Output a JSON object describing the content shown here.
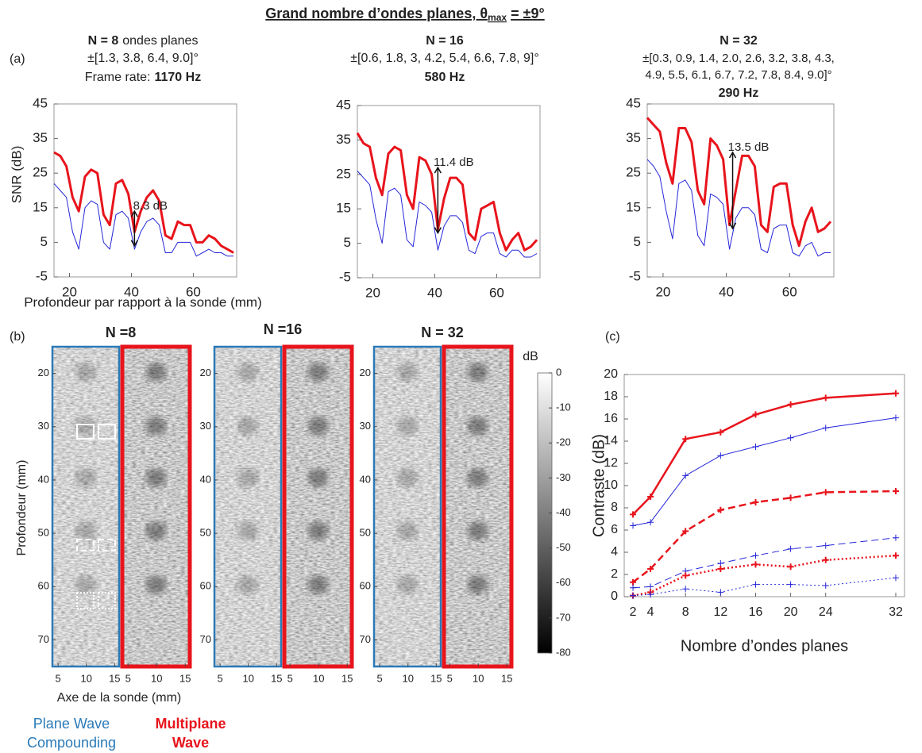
{
  "title": {
    "main": "Grand nombre d’ondes planes, θ",
    "sub": "max",
    "end": "= ±9°"
  },
  "panel_labels": [
    "(a)",
    "(b)",
    "(c)"
  ],
  "chart_data": [
    {
      "type": "line",
      "header": {
        "n": "N = 8",
        "n_text": "ondes planes",
        "angles": [
          "±[1.3, 3.8, 6.4, 9.0]°"
        ],
        "rate_label": "Frame rate:",
        "rate": "1170 Hz"
      },
      "ylabel": "SNR (dB)",
      "xlabel": "Profondeur par rapport à la sonde (mm)",
      "x": [
        15,
        17,
        19,
        21,
        23,
        25,
        27,
        29,
        31,
        33,
        35,
        37,
        39,
        41,
        43,
        45,
        47,
        49,
        51,
        53,
        55,
        57,
        59,
        61,
        63,
        65,
        67,
        69,
        71,
        73
      ],
      "xlim": [
        15,
        74
      ],
      "xticks": [
        20,
        40,
        60
      ],
      "ylim": [
        -5,
        45
      ],
      "yticks": [
        -5,
        5,
        15,
        25,
        35,
        45
      ],
      "series": [
        {
          "color": "#e8141c",
          "linewidth": 3,
          "values": [
            31,
            30,
            27,
            18,
            14,
            24,
            26,
            25,
            13,
            10,
            22,
            23,
            19,
            8,
            14,
            18,
            20,
            17,
            7,
            6,
            11,
            10,
            10,
            5,
            5,
            7,
            6,
            4,
            3,
            2
          ]
        },
        {
          "color": "#2626d9",
          "linewidth": 1,
          "values": [
            22,
            20,
            18,
            8,
            3,
            15,
            17,
            16,
            5,
            3,
            13,
            14,
            12,
            3,
            8,
            11,
            12,
            10,
            2,
            2,
            5,
            5,
            5,
            1,
            2,
            3,
            2,
            2,
            1,
            1
          ]
        }
      ],
      "annotations": [
        {
          "text": "8.3 dB",
          "x": 41,
          "y": [
            4,
            14
          ]
        }
      ]
    },
    {
      "type": "line",
      "header": {
        "n": "N = 16",
        "angles": [
          "±[0.6, 1.8, 3, 4.2, 5.4, 6.6, 7.8, 9]°"
        ],
        "rate": "580 Hz"
      },
      "x": [
        15,
        17,
        19,
        21,
        23,
        25,
        27,
        29,
        31,
        33,
        35,
        37,
        39,
        41,
        43,
        45,
        47,
        49,
        51,
        53,
        55,
        57,
        59,
        61,
        63,
        65,
        67,
        69,
        71,
        73
      ],
      "xlim": [
        15,
        74
      ],
      "xticks": [
        20,
        40,
        60
      ],
      "ylim": [
        -5,
        45
      ],
      "yticks": [
        -5,
        5,
        15,
        25,
        35,
        45
      ],
      "series": [
        {
          "color": "#e8141c",
          "linewidth": 3,
          "values": [
            37,
            34,
            33,
            24,
            19,
            31,
            33,
            32,
            19,
            15,
            30,
            29,
            25,
            9,
            18,
            24,
            24,
            22,
            8,
            6,
            15,
            16,
            17,
            8,
            3,
            6,
            8,
            3,
            4,
            6
          ]
        },
        {
          "color": "#2626d9",
          "linewidth": 1,
          "values": [
            26,
            24,
            22,
            12,
            5,
            20,
            21,
            19,
            6,
            4,
            17,
            16,
            14,
            3,
            10,
            13,
            13,
            11,
            3,
            2,
            7,
            8,
            8,
            2,
            1,
            3,
            3,
            1,
            1,
            2
          ]
        }
      ],
      "annotations": [
        {
          "text": "11.4 dB",
          "x": 41,
          "y": [
            8,
            27
          ]
        }
      ]
    },
    {
      "type": "line",
      "header": {
        "n": "N = 32",
        "angles": [
          "±[0.3, 0.9, 1.4, 2.0, 2.6, 3.2,  3.8, 4.3,",
          "4.9, 5.5, 6.1, 6.7, 7.2, 7.8, 8.4, 9.0]°"
        ],
        "rate": "290 Hz"
      },
      "x": [
        15,
        17,
        19,
        21,
        23,
        25,
        27,
        29,
        31,
        33,
        35,
        37,
        39,
        41,
        43,
        45,
        47,
        49,
        51,
        53,
        55,
        57,
        59,
        61,
        63,
        65,
        67,
        69,
        71,
        73
      ],
      "xlim": [
        15,
        74
      ],
      "xticks": [
        20,
        40,
        60
      ],
      "ylim": [
        -5,
        45
      ],
      "yticks": [
        -5,
        5,
        15,
        25,
        35,
        45
      ],
      "series": [
        {
          "color": "#e8141c",
          "linewidth": 3,
          "values": [
            41,
            39,
            37,
            28,
            22,
            38,
            38,
            34,
            20,
            16,
            35,
            33,
            29,
            10,
            20,
            30,
            30,
            27,
            10,
            8,
            21,
            22,
            22,
            10,
            4,
            11,
            15,
            8,
            9,
            11
          ]
        },
        {
          "color": "#2626d9",
          "linewidth": 1,
          "values": [
            29,
            27,
            24,
            14,
            6,
            22,
            23,
            20,
            7,
            4,
            19,
            18,
            16,
            3,
            12,
            15,
            15,
            13,
            3,
            2,
            9,
            10,
            10,
            2,
            1,
            4,
            5,
            1,
            2,
            2
          ]
        }
      ],
      "annotations": [
        {
          "text": "13.5 dB",
          "x": 42,
          "y": [
            9,
            31
          ]
        }
      ]
    },
    {
      "type": "line",
      "marker": "+",
      "ylabel": "Contraste (dB)",
      "xlabel": "Nombre d’ondes planes",
      "x": [
        2,
        4,
        8,
        12,
        16,
        20,
        24,
        32
      ],
      "xlim": [
        1,
        33
      ],
      "xticks": [
        2,
        4,
        8,
        12,
        16,
        20,
        24,
        32
      ],
      "ylim": [
        0,
        20
      ],
      "yticks": [
        0,
        2,
        4,
        6,
        8,
        10,
        12,
        14,
        16,
        18,
        20
      ],
      "series": [
        {
          "color": "#e8141c",
          "linewidth": 2.5,
          "linestyle": "solid",
          "values": [
            7.4,
            9.0,
            14.2,
            14.8,
            16.4,
            17.3,
            17.9,
            18.3
          ]
        },
        {
          "color": "#2626d9",
          "linewidth": 1,
          "linestyle": "solid",
          "values": [
            6.4,
            6.7,
            10.9,
            12.7,
            13.5,
            14.3,
            15.2,
            16.1
          ]
        },
        {
          "color": "#e8141c",
          "linewidth": 2.5,
          "linestyle": "dashed",
          "values": [
            1.3,
            2.5,
            5.9,
            7.8,
            8.5,
            8.9,
            9.4,
            9.5
          ]
        },
        {
          "color": "#2626d9",
          "linewidth": 1,
          "linestyle": "dashed",
          "values": [
            0.8,
            0.9,
            2.3,
            3.0,
            3.7,
            4.3,
            4.6,
            5.3
          ]
        },
        {
          "color": "#e8141c",
          "linewidth": 2.5,
          "linestyle": "dotted",
          "values": [
            0.1,
            0.4,
            1.9,
            2.5,
            2.9,
            2.7,
            3.3,
            3.7
          ]
        },
        {
          "color": "#2626d9",
          "linewidth": 1,
          "linestyle": "dotted",
          "values": [
            0.1,
            0.2,
            0.7,
            0.4,
            1.1,
            1.1,
            1.0,
            1.7
          ]
        }
      ]
    }
  ],
  "images": {
    "ylabel": "Profondeur (mm)",
    "xlabel": "Axe de la sonde (mm)",
    "ylim": [
      15,
      75
    ],
    "yticks": [
      20,
      30,
      40,
      50,
      60,
      70
    ],
    "xlim": [
      4,
      15.8
    ],
    "xticks": [
      5,
      10,
      15
    ],
    "groups": [
      {
        "title": "N =8"
      },
      {
        "title": "N =16"
      },
      {
        "title": "N = 32"
      }
    ],
    "frame_colors": [
      "#2a7ab8",
      "#e8141c"
    ]
  },
  "colorbar": {
    "label": "dB",
    "lim": [
      -80,
      0
    ],
    "ticks": [
      0,
      -10,
      -20,
      -30,
      -40,
      -50,
      -60,
      -70,
      -80
    ]
  },
  "legend": [
    {
      "lines": [
        "Plane Wave",
        "Compounding"
      ],
      "color": "#2a7ab8"
    },
    {
      "lines": [
        "Multiplane",
        "Wave"
      ],
      "color": "#e8141c"
    }
  ]
}
